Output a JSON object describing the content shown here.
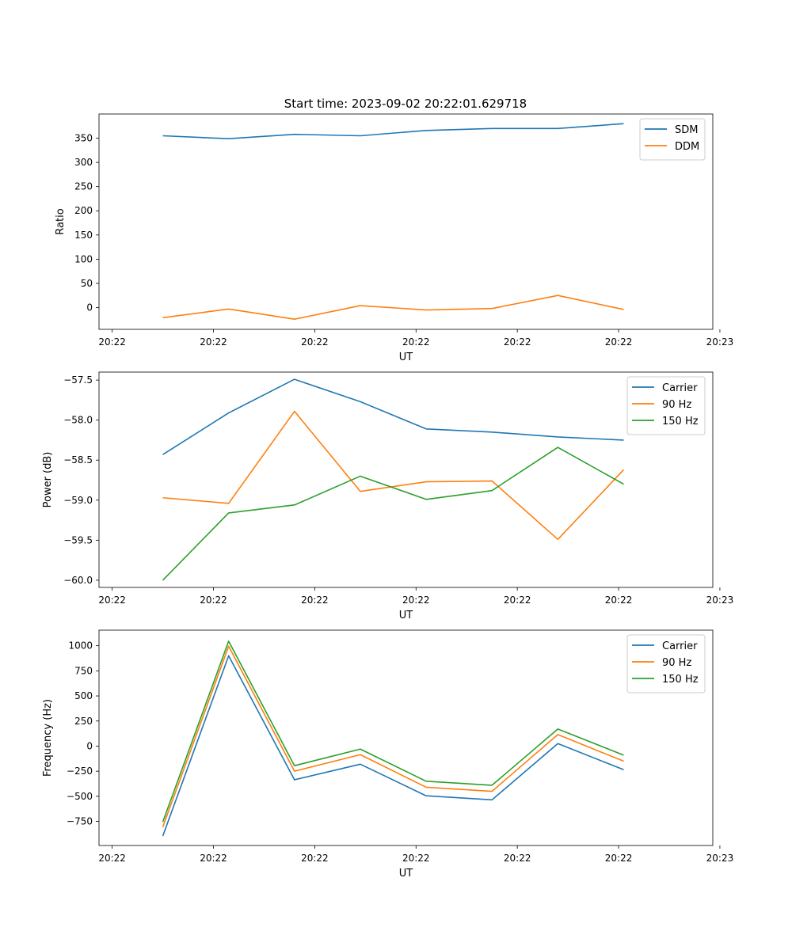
{
  "figure": {
    "title": "Start time: 2023-09-02 20:22:01.629718"
  },
  "colors": {
    "blue": "#1f77b4",
    "orange": "#ff7f0e",
    "green": "#2ca02c"
  },
  "chart_data": [
    {
      "type": "line",
      "xlabel": "UT",
      "ylabel": "Ratio",
      "x": [
        0.5,
        1.15,
        1.8,
        2.45,
        3.1,
        3.75,
        4.4,
        5.05
      ],
      "x_tick_values": [
        0,
        1,
        2,
        3,
        4,
        5,
        6
      ],
      "x_tick_labels": [
        "20:22",
        "20:22",
        "20:22",
        "20:22",
        "20:22",
        "20:22",
        "20:23"
      ],
      "xlim": [
        -0.13,
        5.93
      ],
      "ylim": [
        -45,
        400
      ],
      "y_tick_values": [
        0,
        50,
        100,
        150,
        200,
        250,
        300,
        350
      ],
      "y_tick_labels": [
        "0",
        "50",
        "100",
        "150",
        "200",
        "250",
        "300",
        "350"
      ],
      "legend": "top-right",
      "series": [
        {
          "name": "SDM",
          "color": "#1f77b4",
          "values": [
            355,
            349,
            358,
            355,
            366,
            370,
            370,
            380
          ]
        },
        {
          "name": "DDM",
          "color": "#ff7f0e",
          "values": [
            -21,
            -3,
            -24,
            4,
            -5,
            -2,
            25,
            -4
          ]
        }
      ]
    },
    {
      "type": "line",
      "xlabel": "UT",
      "ylabel": "Power (dB)",
      "x": [
        0.5,
        1.15,
        1.8,
        2.45,
        3.1,
        3.75,
        4.4,
        5.05
      ],
      "x_tick_values": [
        0,
        1,
        2,
        3,
        4,
        5,
        6
      ],
      "x_tick_labels": [
        "20:22",
        "20:22",
        "20:22",
        "20:22",
        "20:22",
        "20:22",
        "20:23"
      ],
      "xlim": [
        -0.13,
        5.93
      ],
      "ylim": [
        -60.09,
        -57.4
      ],
      "y_tick_values": [
        -57.5,
        -58.0,
        -58.5,
        -59.0,
        -59.5,
        -60.0
      ],
      "y_tick_labels": [
        "−57.5",
        "−58.0",
        "−58.5",
        "−59.0",
        "−59.5",
        "−60.0"
      ],
      "legend": "top-right",
      "series": [
        {
          "name": "Carrier",
          "color": "#1f77b4",
          "values": [
            -58.43,
            -57.91,
            -57.49,
            -57.77,
            -58.11,
            -58.15,
            -58.21,
            -58.25
          ]
        },
        {
          "name": "90 Hz",
          "color": "#ff7f0e",
          "values": [
            -58.97,
            -59.04,
            -57.89,
            -58.89,
            -58.77,
            -58.76,
            -59.49,
            -58.62
          ]
        },
        {
          "name": "150 Hz",
          "color": "#2ca02c",
          "values": [
            -60.0,
            -59.16,
            -59.06,
            -58.7,
            -58.99,
            -58.88,
            -58.34,
            -58.8
          ]
        }
      ]
    },
    {
      "type": "line",
      "xlabel": "UT",
      "ylabel": "Frequency (Hz)",
      "x": [
        0.5,
        1.15,
        1.8,
        2.45,
        3.1,
        3.75,
        4.4,
        5.05
      ],
      "x_tick_values": [
        0,
        1,
        2,
        3,
        4,
        5,
        6
      ],
      "x_tick_labels": [
        "20:22",
        "20:22",
        "20:22",
        "20:22",
        "20:22",
        "20:22",
        "20:23"
      ],
      "xlim": [
        -0.13,
        5.93
      ],
      "ylim": [
        -990,
        1155
      ],
      "y_tick_values": [
        1000,
        750,
        500,
        250,
        0,
        -250,
        -500,
        -750
      ],
      "y_tick_labels": [
        "1000",
        "750",
        "500",
        "250",
        "0",
        "−250",
        "−500",
        "−750"
      ],
      "legend": "top-right",
      "series": [
        {
          "name": "Carrier",
          "color": "#1f77b4",
          "values": [
            -895,
            900,
            -335,
            -180,
            -495,
            -535,
            25,
            -235
          ]
        },
        {
          "name": "90 Hz",
          "color": "#ff7f0e",
          "values": [
            -805,
            995,
            -250,
            -85,
            -410,
            -450,
            115,
            -150
          ]
        },
        {
          "name": "150 Hz",
          "color": "#2ca02c",
          "values": [
            -755,
            1045,
            -195,
            -30,
            -350,
            -390,
            170,
            -90
          ]
        }
      ]
    }
  ]
}
